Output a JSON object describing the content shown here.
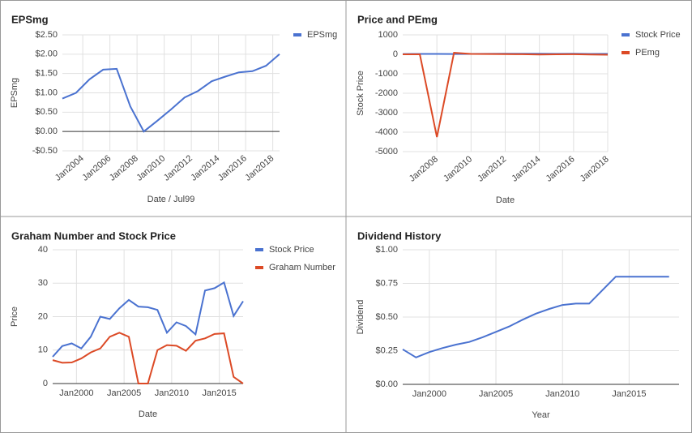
{
  "chart_data": [
    {
      "type": "line",
      "title": "EPSmg",
      "xlabel": "Date / Jul99",
      "ylabel": "EPSmg",
      "x": [
        "2002-07",
        "2003-07",
        "2004-07",
        "2005-07",
        "2006-07",
        "2007-07",
        "2008-07",
        "2009-07",
        "2010-07",
        "2011-07",
        "2012-07",
        "2013-07",
        "2014-07",
        "2015-07",
        "2016-07",
        "2017-07",
        "2018-07"
      ],
      "series": [
        {
          "name": "EPSmg",
          "color": "#4a72d0",
          "values": [
            0.85,
            1.0,
            1.35,
            1.6,
            1.62,
            0.65,
            0.0,
            0.28,
            0.57,
            0.88,
            1.05,
            1.3,
            1.42,
            1.53,
            1.56,
            1.7,
            2.0
          ]
        }
      ],
      "xlim": [
        "2002-07",
        "2018-07"
      ],
      "xticks": [
        {
          "value": "2004-01",
          "label": "Jan2004"
        },
        {
          "value": "2006-01",
          "label": "Jan2006"
        },
        {
          "value": "2008-01",
          "label": "Jan2008"
        },
        {
          "value": "2010-01",
          "label": "Jan2010"
        },
        {
          "value": "2012-01",
          "label": "Jan2012"
        },
        {
          "value": "2014-01",
          "label": "Jan2014"
        },
        {
          "value": "2016-01",
          "label": "Jan2016"
        },
        {
          "value": "2018-01",
          "label": "Jan2018"
        }
      ],
      "ylim": [
        -0.5,
        2.5
      ],
      "yticks": [
        {
          "value": -0.5,
          "label": "-$0.50"
        },
        {
          "value": 0,
          "label": "$0.00"
        },
        {
          "value": 0.5,
          "label": "$0.50"
        },
        {
          "value": 1,
          "label": "$1.00"
        },
        {
          "value": 1.5,
          "label": "$1.50"
        },
        {
          "value": 2,
          "label": "$2.00"
        },
        {
          "value": 2.5,
          "label": "$2.50"
        }
      ],
      "grid": true,
      "legend": "right",
      "rotate_xticks": true
    },
    {
      "type": "line",
      "title": "Price and PEmg",
      "xlabel": "Date",
      "ylabel": "Stock Price",
      "x": [
        "2006-01",
        "2007-01",
        "2008-01",
        "2009-01",
        "2010-01",
        "2011-01",
        "2012-01",
        "2013-01",
        "2014-01",
        "2015-01",
        "2016-01",
        "2017-01",
        "2018-01"
      ],
      "series": [
        {
          "name": "Stock Price",
          "color": "#4a72d0",
          "values": [
            15,
            20,
            22,
            18,
            20,
            25,
            28,
            28,
            30,
            25,
            28,
            22,
            25
          ]
        },
        {
          "name": "PEmg",
          "color": "#dc4a26",
          "values": [
            0,
            0,
            -4250,
            80,
            20,
            15,
            10,
            5,
            -10,
            0,
            5,
            -10,
            -20
          ]
        }
      ],
      "xlim": [
        "2006-01",
        "2018-01"
      ],
      "xticks": [
        {
          "value": "2008-01",
          "label": "Jan2008"
        },
        {
          "value": "2010-01",
          "label": "Jan2010"
        },
        {
          "value": "2012-01",
          "label": "Jan2012"
        },
        {
          "value": "2014-01",
          "label": "Jan2014"
        },
        {
          "value": "2016-01",
          "label": "Jan2016"
        },
        {
          "value": "2018-01",
          "label": "Jan2018"
        }
      ],
      "ylim": [
        -5000,
        1000
      ],
      "yticks": [
        -5000,
        -4000,
        -3000,
        -2000,
        -1000,
        0,
        1000
      ],
      "grid": true,
      "legend": "right",
      "rotate_xticks": true
    },
    {
      "type": "line",
      "title": "Graham Number and Stock Price",
      "xlabel": "Date",
      "ylabel": "Price",
      "x": [
        "1997-07",
        "1998-07",
        "1999-07",
        "2000-07",
        "2001-07",
        "2002-07",
        "2003-07",
        "2004-07",
        "2005-07",
        "2006-07",
        "2007-07",
        "2008-07",
        "2009-07",
        "2010-07",
        "2011-07",
        "2012-07",
        "2013-07",
        "2014-07",
        "2015-07",
        "2016-07",
        "2017-07"
      ],
      "series": [
        {
          "name": "Stock Price",
          "color": "#4a72d0",
          "values": [
            8,
            11.2,
            12,
            10.5,
            14,
            20,
            19.3,
            22.5,
            25,
            23,
            22.8,
            22,
            15.2,
            18.3,
            17.2,
            14.7,
            27.8,
            28.5,
            30.2,
            20.2,
            24.6
          ]
        },
        {
          "name": "Graham Number",
          "color": "#dc4a26",
          "values": [
            7,
            6.2,
            6.3,
            7.5,
            9.3,
            10.5,
            14,
            15.2,
            14,
            0,
            0,
            10,
            11.5,
            11.3,
            9.8,
            12.8,
            13.5,
            14.8,
            15,
            2,
            0
          ]
        }
      ],
      "xlim": [
        "1997-07",
        "2017-07"
      ],
      "xticks": [
        {
          "value": "2000-01",
          "label": "Jan2000"
        },
        {
          "value": "2005-01",
          "label": "Jan2005"
        },
        {
          "value": "2010-01",
          "label": "Jan2010"
        },
        {
          "value": "2015-01",
          "label": "Jan2015"
        }
      ],
      "ylim": [
        0,
        40
      ],
      "yticks": [
        0,
        10,
        20,
        30,
        40
      ],
      "grid": true,
      "legend": "right",
      "rotate_xticks": false
    },
    {
      "type": "line",
      "title": "Dividend History",
      "xlabel": "Year",
      "ylabel": "Dividend",
      "x": [
        "1998-01",
        "1999-01",
        "2000-01",
        "2001-01",
        "2002-01",
        "2003-01",
        "2004-01",
        "2005-01",
        "2006-01",
        "2007-01",
        "2008-01",
        "2009-01",
        "2010-01",
        "2011-01",
        "2012-01",
        "2013-01",
        "2014-01",
        "2015-01",
        "2016-01",
        "2017-01",
        "2018-01"
      ],
      "series": [
        {
          "color": "#4a72d0",
          "values": [
            0.26,
            0.2,
            0.24,
            0.27,
            0.295,
            0.315,
            0.35,
            0.39,
            0.43,
            0.48,
            0.525,
            0.56,
            0.59,
            0.6,
            0.6,
            0.7,
            0.8,
            0.8,
            0.8,
            0.8,
            0.8
          ]
        }
      ],
      "xlim": [
        "1998-01",
        "2018-10"
      ],
      "xticks": [
        {
          "value": "2000-01",
          "label": "Jan2000"
        },
        {
          "value": "2005-01",
          "label": "Jan2005"
        },
        {
          "value": "2010-01",
          "label": "Jan2010"
        },
        {
          "value": "2015-01",
          "label": "Jan2015"
        }
      ],
      "ylim": [
        0,
        1
      ],
      "yticks": [
        {
          "value": 0,
          "label": "$0.00"
        },
        {
          "value": 0.25,
          "label": "$0.25"
        },
        {
          "value": 0.5,
          "label": "$0.50"
        },
        {
          "value": 0.75,
          "label": "$0.75"
        },
        {
          "value": 1,
          "label": "$1.00"
        }
      ],
      "grid": true,
      "rotate_xticks": false
    }
  ]
}
